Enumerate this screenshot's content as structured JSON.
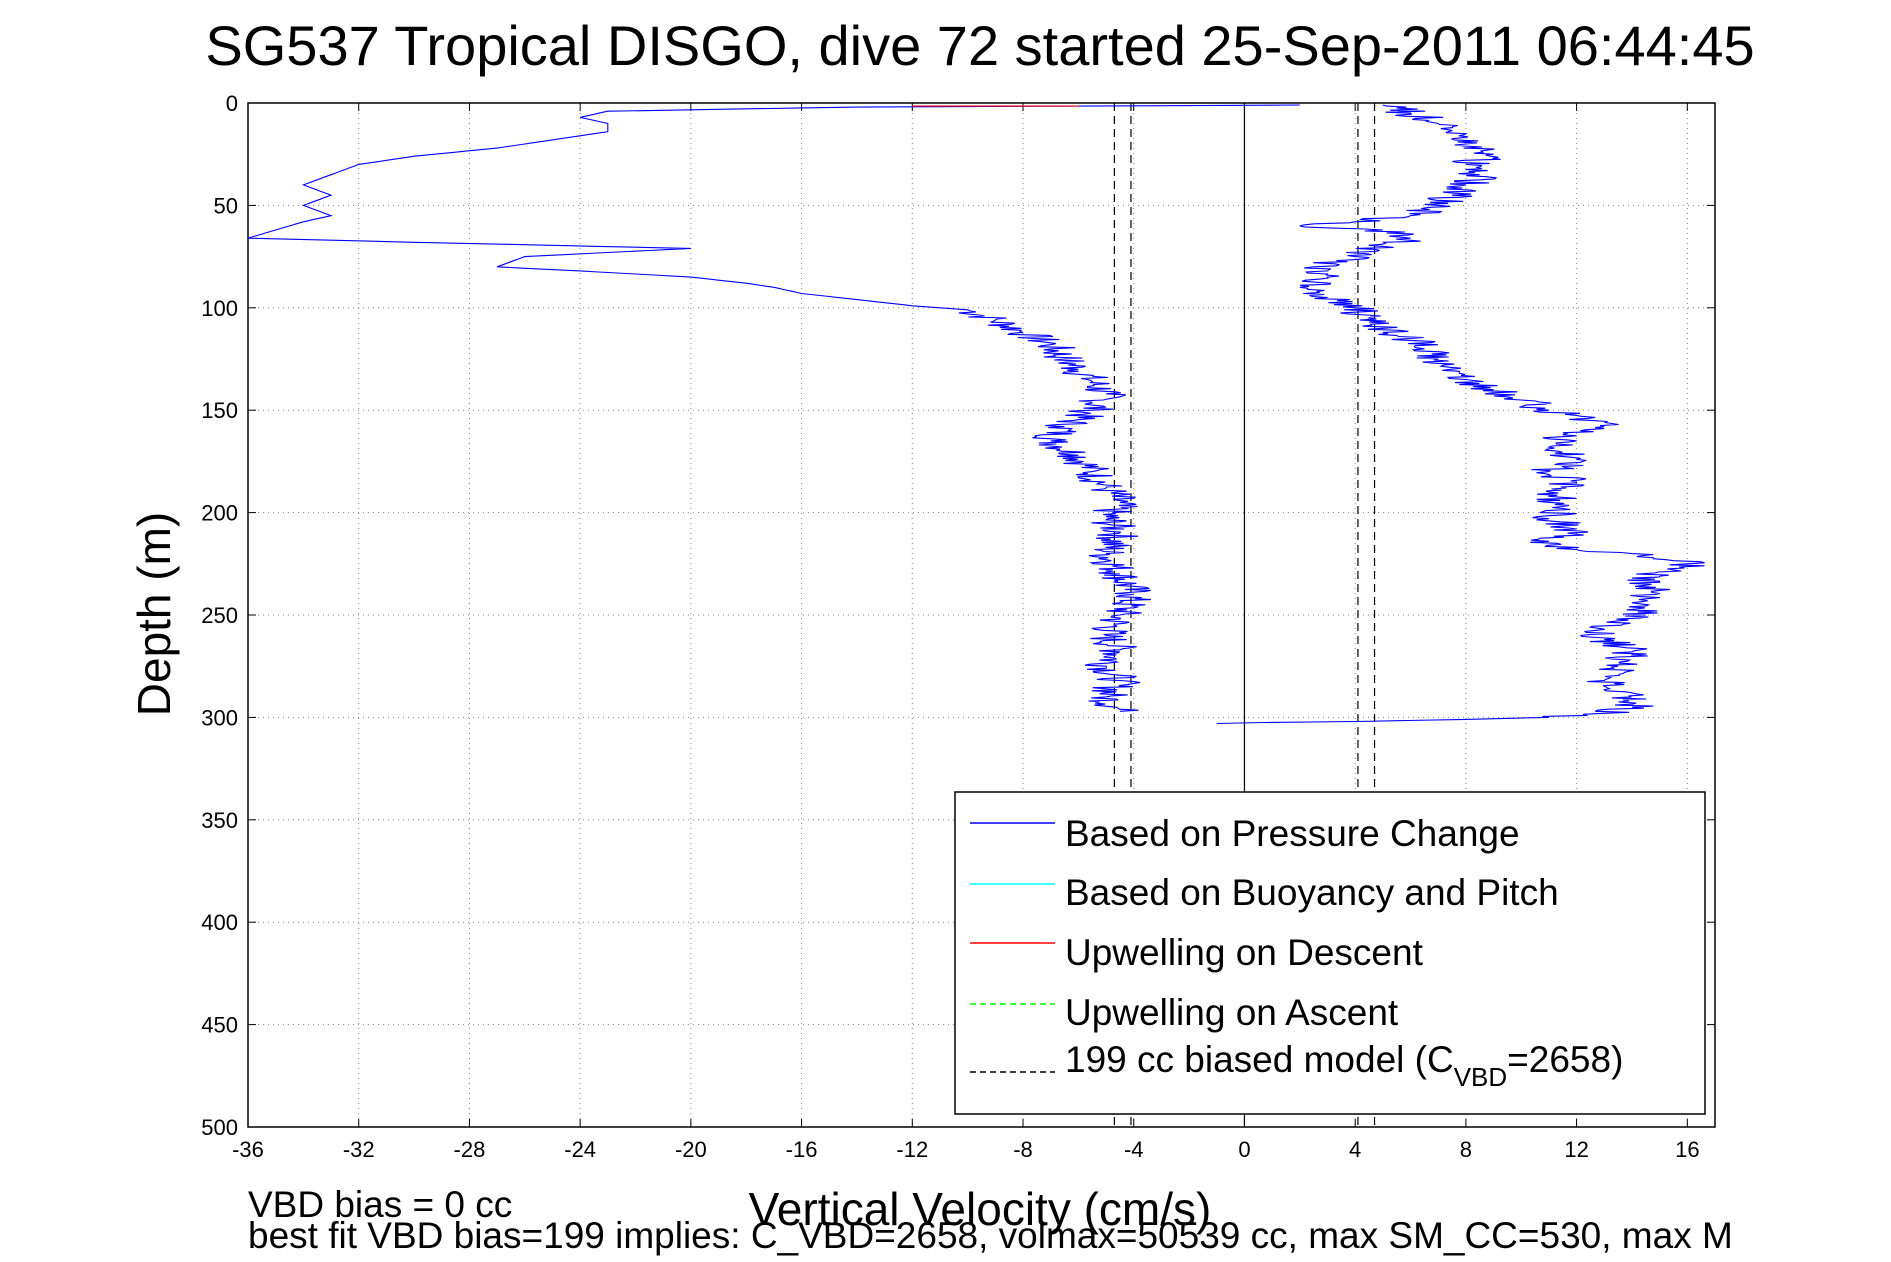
{
  "chart_data": {
    "type": "line",
    "title": "SG537 Tropical DISGO, dive 72 started 25-Sep-2011 06:44:45",
    "xlabel": "Vertical Velocity (cm/s)",
    "ylabel": "Depth (m)",
    "xlim": [
      -36,
      17
    ],
    "ylim": [
      0,
      500
    ],
    "y_reversed": true,
    "grid": true,
    "legend_position": "bottom-right",
    "x_ticks": [
      "-36",
      "-32",
      "-28",
      "-24",
      "-20",
      "-16",
      "-12",
      "-8",
      "-4",
      "0",
      "4",
      "8",
      "12",
      "16"
    ],
    "y_ticks": [
      "0",
      "50",
      "100",
      "150",
      "200",
      "250",
      "300",
      "350",
      "400",
      "450",
      "500"
    ],
    "series": [
      {
        "name": "Based on Pressure Change",
        "color": "#0000ff",
        "segment": "descent",
        "points": [
          [
            2.0,
            1
          ],
          [
            -14,
            2
          ],
          [
            -23,
            4
          ],
          [
            -24,
            7
          ],
          [
            -23,
            10
          ],
          [
            -23,
            14
          ],
          [
            -25,
            18
          ],
          [
            -27,
            22
          ],
          [
            -30,
            26
          ],
          [
            -32,
            30
          ],
          [
            -33,
            35
          ],
          [
            -34,
            40
          ],
          [
            -33,
            45
          ],
          [
            -34,
            50
          ],
          [
            -33,
            55
          ],
          [
            -34,
            58
          ],
          [
            -35,
            62
          ],
          [
            -36,
            66
          ],
          [
            -30,
            68
          ],
          [
            -20,
            71
          ],
          [
            -26,
            75
          ],
          [
            -27,
            80
          ],
          [
            -24,
            82
          ],
          [
            -20,
            85
          ],
          [
            -18,
            88
          ],
          [
            -17,
            90
          ],
          [
            -16,
            93
          ],
          [
            -14,
            96
          ],
          [
            -12,
            99
          ],
          [
            -10,
            101
          ],
          [
            -9,
            106
          ],
          [
            -8,
            112
          ],
          [
            -7,
            118
          ],
          [
            -6.5,
            125
          ],
          [
            -6,
            130
          ],
          [
            -5.5,
            136
          ],
          [
            -5,
            142
          ],
          [
            -5.5,
            150
          ],
          [
            -6.5,
            158
          ],
          [
            -7,
            165
          ],
          [
            -6,
            172
          ],
          [
            -5.5,
            180
          ],
          [
            -5,
            188
          ],
          [
            -4.5,
            195
          ],
          [
            -5,
            202
          ],
          [
            -4.5,
            210
          ],
          [
            -5,
            220
          ],
          [
            -4.5,
            230
          ],
          [
            -4,
            240
          ],
          [
            -4.5,
            250
          ],
          [
            -5,
            260
          ],
          [
            -4.5,
            268
          ],
          [
            -5,
            275
          ],
          [
            -4.5,
            282
          ],
          [
            -5,
            290
          ],
          [
            -4.5,
            297
          ]
        ]
      },
      {
        "name": "Based on Pressure Change",
        "color": "#0000ff",
        "segment": "ascent",
        "points": [
          [
            -1,
            303
          ],
          [
            4,
            302
          ],
          [
            8,
            301
          ],
          [
            11,
            300
          ],
          [
            13,
            298
          ],
          [
            14,
            295
          ],
          [
            14,
            288
          ],
          [
            13,
            282
          ],
          [
            13.5,
            275
          ],
          [
            14,
            268
          ],
          [
            13,
            262
          ],
          [
            12.5,
            256
          ],
          [
            14.5,
            250
          ],
          [
            14,
            244
          ],
          [
            15,
            238
          ],
          [
            14,
            232
          ],
          [
            15.5,
            228
          ],
          [
            16.5,
            224
          ],
          [
            14,
            220
          ],
          [
            12,
            218
          ],
          [
            11,
            214
          ],
          [
            12,
            208
          ],
          [
            11,
            203
          ],
          [
            11.5,
            197
          ],
          [
            11,
            190
          ],
          [
            12,
            185
          ],
          [
            11,
            180
          ],
          [
            12,
            174
          ],
          [
            11,
            168
          ],
          [
            11.5,
            162
          ],
          [
            13,
            158
          ],
          [
            12.5,
            155
          ],
          [
            11,
            150
          ],
          [
            10,
            145
          ],
          [
            9,
            140
          ],
          [
            8,
            135
          ],
          [
            7.5,
            130
          ],
          [
            7,
            125
          ],
          [
            6.5,
            120
          ],
          [
            6,
            115
          ],
          [
            5,
            110
          ],
          [
            4.5,
            105
          ],
          [
            4,
            100
          ],
          [
            3,
            95
          ],
          [
            2,
            90
          ],
          [
            3,
            85
          ],
          [
            2.5,
            80
          ],
          [
            4,
            75
          ],
          [
            5,
            70
          ],
          [
            6,
            66
          ],
          [
            5,
            62
          ],
          [
            2,
            60
          ],
          [
            4,
            58
          ],
          [
            6,
            55
          ],
          [
            7,
            50
          ],
          [
            7.5,
            45
          ],
          [
            8,
            40
          ],
          [
            8.5,
            35
          ],
          [
            8,
            30
          ],
          [
            9,
            25
          ],
          [
            8,
            20
          ],
          [
            8,
            15
          ],
          [
            7,
            10
          ],
          [
            6,
            5
          ],
          [
            5,
            1
          ]
        ]
      },
      {
        "name": "Based on Buoyancy and Pitch",
        "color": "#00ffff",
        "points": []
      },
      {
        "name": "Upwelling on Descent",
        "color": "#ff0000",
        "points": [
          [
            -12,
            1.5
          ],
          [
            -6,
            1.5
          ]
        ]
      },
      {
        "name": "Upwelling on Ascent",
        "color": "#00ff00",
        "points": []
      },
      {
        "name": "199 cc biased model",
        "name_subscript": "VBD",
        "name_prefix": "199 cc biased model (C",
        "name_suffix": "=2658)",
        "color": "#000000",
        "dashed": true,
        "verticals_x": [
          -4.7,
          -4.1,
          4.1,
          4.7
        ],
        "y_extent": [
          0,
          500
        ]
      }
    ],
    "zero_line_x": 0
  },
  "legend": {
    "item1": "Based on Pressure Change",
    "item2": "Based on Buoyancy and Pitch",
    "item3": "Upwelling on Descent",
    "item4": "Upwelling on Ascent",
    "item5_prefix": "199 cc biased model (C",
    "item5_sub": "VBD",
    "item5_suffix": "=2658)"
  },
  "footer": {
    "line1": "VBD bias = 0 cc",
    "line2": "best fit VBD bias=199 implies: C_VBD=2658, volmax=50539 cc, max SM_CC=530, max M"
  }
}
